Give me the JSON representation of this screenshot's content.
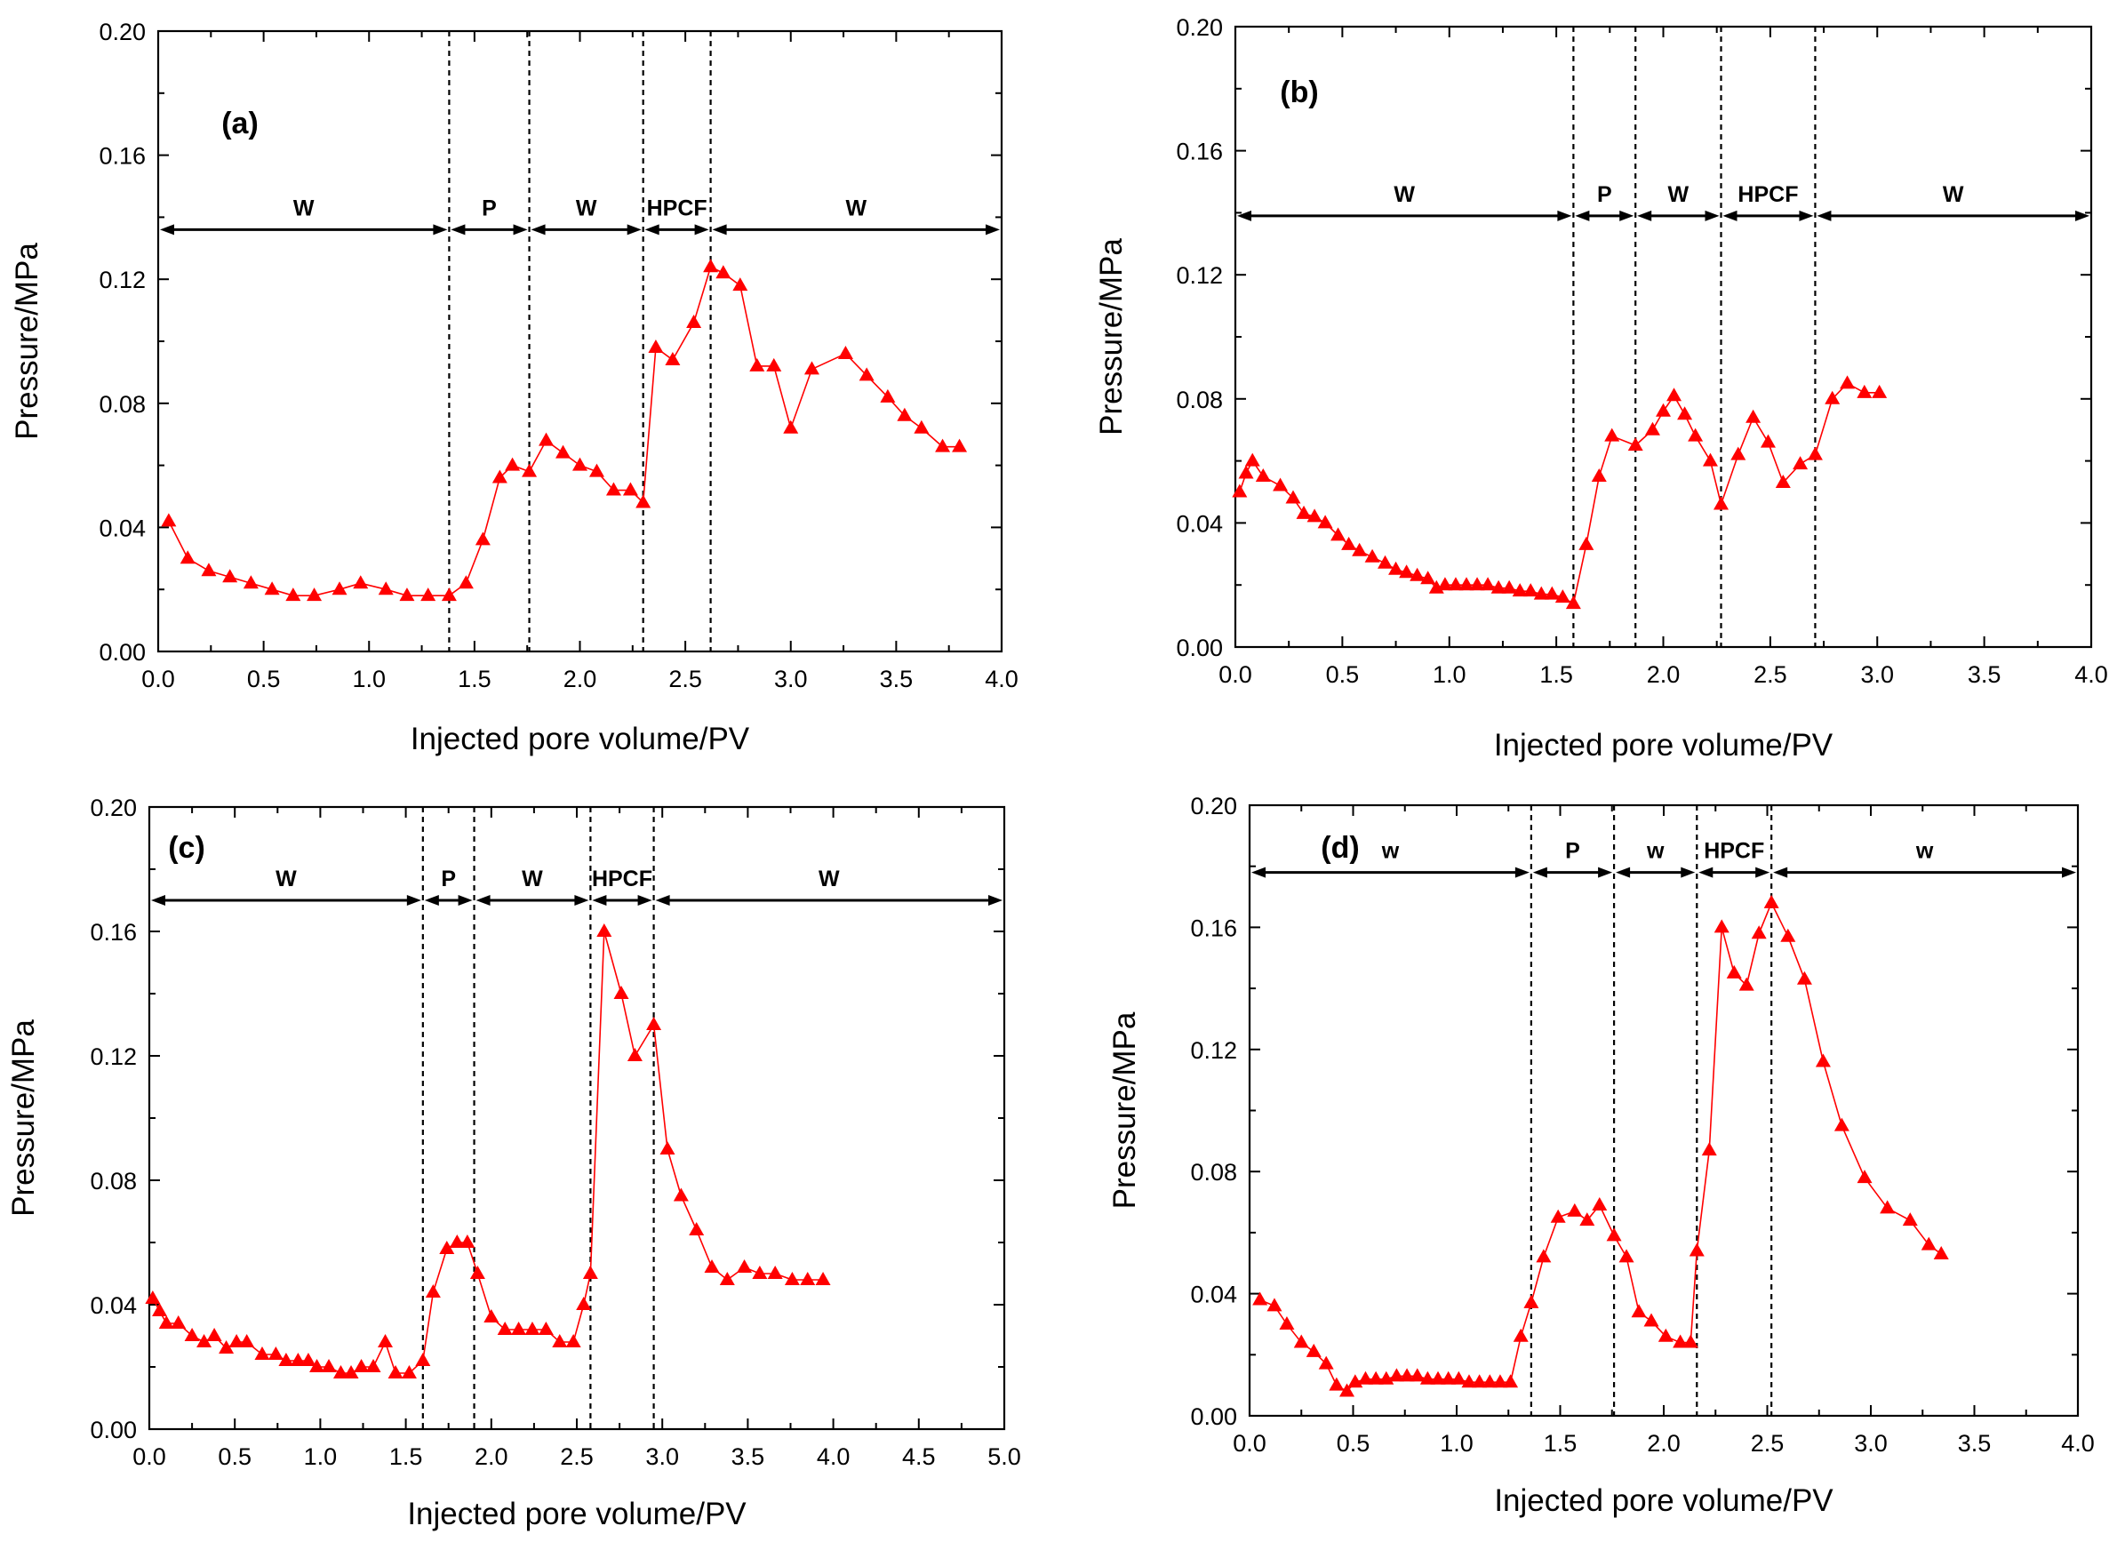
{
  "colors": {
    "series": "#ff0000",
    "axis": "#000000"
  },
  "chart_data": [
    {
      "type": "line",
      "panel": "(a)",
      "xlabel": "Injected pore volume/PV",
      "ylabel": "Pressure/MPa",
      "xlim": [
        0.0,
        4.0
      ],
      "ylim": [
        0.0,
        0.2
      ],
      "xticks": [
        "0.0",
        "0.5",
        "1.0",
        "1.5",
        "2.0",
        "2.5",
        "3.0",
        "3.5",
        "4.0"
      ],
      "yticks": [
        "0.00",
        "0.04",
        "0.08",
        "0.12",
        "0.16",
        "0.20"
      ],
      "dividers": [
        1.38,
        1.76,
        2.3,
        2.62
      ],
      "stages": [
        {
          "label": "W",
          "from": 0.0,
          "to": 1.38,
          "y": 0.136
        },
        {
          "label": "P",
          "from": 1.38,
          "to": 1.76,
          "y": 0.136
        },
        {
          "label": "W",
          "from": 1.76,
          "to": 2.3,
          "y": 0.136
        },
        {
          "label": "HPCF",
          "from": 2.3,
          "to": 2.62,
          "y": 0.136
        },
        {
          "label": "W",
          "from": 2.62,
          "to": 4.0,
          "y": 0.136
        }
      ],
      "series": [
        {
          "name": "Pressure",
          "x": [
            0.05,
            0.14,
            0.24,
            0.34,
            0.44,
            0.54,
            0.64,
            0.74,
            0.86,
            0.96,
            1.08,
            1.18,
            1.28,
            1.38,
            1.46,
            1.54,
            1.62,
            1.68,
            1.76,
            1.84,
            1.92,
            2.0,
            2.08,
            2.16,
            2.24,
            2.3,
            2.36,
            2.44,
            2.54,
            2.62,
            2.68,
            2.76,
            2.84,
            2.92,
            3.0,
            3.1,
            3.26,
            3.36,
            3.46,
            3.54,
            3.62,
            3.72,
            3.8
          ],
          "y": [
            0.042,
            0.03,
            0.026,
            0.024,
            0.022,
            0.02,
            0.018,
            0.018,
            0.02,
            0.022,
            0.02,
            0.018,
            0.018,
            0.018,
            0.022,
            0.036,
            0.056,
            0.06,
            0.058,
            0.068,
            0.064,
            0.06,
            0.058,
            0.052,
            0.052,
            0.048,
            0.098,
            0.094,
            0.106,
            0.124,
            0.122,
            0.118,
            0.092,
            0.092,
            0.072,
            0.091,
            0.096,
            0.089,
            0.082,
            0.076,
            0.072,
            0.066,
            0.066
          ]
        }
      ]
    },
    {
      "type": "line",
      "panel": "(b)",
      "xlabel": "Injected pore volume/PV",
      "ylabel": "Pressure/MPa",
      "xlim": [
        0.0,
        4.0
      ],
      "ylim": [
        0.0,
        0.2
      ],
      "xticks": [
        "0.0",
        "0.5",
        "1.0",
        "1.5",
        "2.0",
        "2.5",
        "3.0",
        "3.5",
        "4.0"
      ],
      "yticks": [
        "0.00",
        "0.04",
        "0.08",
        "0.12",
        "0.16",
        "0.20"
      ],
      "dividers": [
        1.58,
        1.87,
        2.27,
        2.71
      ],
      "stages": [
        {
          "label": "W",
          "from": 0.0,
          "to": 1.58,
          "y": 0.139
        },
        {
          "label": "P",
          "from": 1.58,
          "to": 1.87,
          "y": 0.139
        },
        {
          "label": "W",
          "from": 1.87,
          "to": 2.27,
          "y": 0.139
        },
        {
          "label": "HPCF",
          "from": 2.27,
          "to": 2.71,
          "y": 0.139
        },
        {
          "label": "W",
          "from": 2.71,
          "to": 4.0,
          "y": 0.139
        }
      ],
      "series": [
        {
          "name": "Pressure",
          "x": [
            0.02,
            0.05,
            0.08,
            0.13,
            0.21,
            0.27,
            0.32,
            0.37,
            0.42,
            0.48,
            0.53,
            0.58,
            0.64,
            0.7,
            0.75,
            0.8,
            0.85,
            0.9,
            0.94,
            0.98,
            1.03,
            1.08,
            1.13,
            1.18,
            1.23,
            1.28,
            1.33,
            1.38,
            1.43,
            1.48,
            1.53,
            1.58,
            1.64,
            1.7,
            1.76,
            1.87,
            1.95,
            2.0,
            2.05,
            2.1,
            2.15,
            2.22,
            2.27,
            2.35,
            2.42,
            2.49,
            2.56,
            2.64,
            2.71,
            2.79,
            2.86,
            2.94,
            3.01
          ],
          "y": [
            0.05,
            0.056,
            0.06,
            0.055,
            0.052,
            0.048,
            0.043,
            0.042,
            0.04,
            0.036,
            0.033,
            0.031,
            0.029,
            0.027,
            0.025,
            0.024,
            0.023,
            0.022,
            0.019,
            0.02,
            0.02,
            0.02,
            0.02,
            0.02,
            0.019,
            0.019,
            0.018,
            0.018,
            0.017,
            0.017,
            0.016,
            0.014,
            0.033,
            0.055,
            0.068,
            0.065,
            0.07,
            0.076,
            0.081,
            0.075,
            0.068,
            0.06,
            0.046,
            0.062,
            0.074,
            0.066,
            0.053,
            0.059,
            0.062,
            0.08,
            0.085,
            0.082,
            0.082
          ]
        }
      ]
    },
    {
      "type": "line",
      "panel": "(c)",
      "xlabel": "Injected pore volume/PV",
      "ylabel": "Pressure/MPa",
      "xlim": [
        0.0,
        5.0
      ],
      "ylim": [
        0.0,
        0.2
      ],
      "xticks": [
        "0.0",
        "0.5",
        "1.0",
        "1.5",
        "2.0",
        "2.5",
        "3.0",
        "3.5",
        "4.0",
        "4.5",
        "5.0"
      ],
      "yticks": [
        "0.00",
        "0.04",
        "0.08",
        "0.12",
        "0.16",
        "0.20"
      ],
      "dividers": [
        1.6,
        1.9,
        2.58,
        2.95
      ],
      "stages": [
        {
          "label": "W",
          "from": 0.0,
          "to": 1.6,
          "y": 0.17
        },
        {
          "label": "P",
          "from": 1.6,
          "to": 1.9,
          "y": 0.17
        },
        {
          "label": "W",
          "from": 1.9,
          "to": 2.58,
          "y": 0.17
        },
        {
          "label": "HPCF",
          "from": 2.58,
          "to": 2.95,
          "y": 0.17
        },
        {
          "label": "W",
          "from": 2.95,
          "to": 5.0,
          "y": 0.17
        }
      ],
      "series": [
        {
          "name": "Pressure",
          "x": [
            0.02,
            0.06,
            0.1,
            0.17,
            0.25,
            0.32,
            0.38,
            0.45,
            0.51,
            0.57,
            0.66,
            0.74,
            0.8,
            0.87,
            0.93,
            0.98,
            1.05,
            1.12,
            1.18,
            1.24,
            1.31,
            1.38,
            1.44,
            1.52,
            1.6,
            1.66,
            1.74,
            1.8,
            1.86,
            1.92,
            2.0,
            2.08,
            2.16,
            2.24,
            2.32,
            2.4,
            2.48,
            2.54,
            2.58,
            2.66,
            2.76,
            2.84,
            2.95,
            3.03,
            3.11,
            3.2,
            3.29,
            3.38,
            3.48,
            3.57,
            3.66,
            3.76,
            3.85,
            3.94
          ],
          "y": [
            0.042,
            0.038,
            0.034,
            0.034,
            0.03,
            0.028,
            0.03,
            0.026,
            0.028,
            0.028,
            0.024,
            0.024,
            0.022,
            0.022,
            0.022,
            0.02,
            0.02,
            0.018,
            0.018,
            0.02,
            0.02,
            0.028,
            0.018,
            0.018,
            0.022,
            0.044,
            0.058,
            0.06,
            0.06,
            0.05,
            0.036,
            0.032,
            0.032,
            0.032,
            0.032,
            0.028,
            0.028,
            0.04,
            0.05,
            0.16,
            0.14,
            0.12,
            0.13,
            0.09,
            0.075,
            0.064,
            0.052,
            0.048,
            0.052,
            0.05,
            0.05,
            0.048,
            0.048,
            0.048
          ]
        }
      ]
    },
    {
      "type": "line",
      "panel": "(d)",
      "xlabel": "Injected pore volume/PV",
      "ylabel": "Pressure/MPa",
      "xlim": [
        0.0,
        4.0
      ],
      "ylim": [
        0.0,
        0.2
      ],
      "xticks": [
        "0.0",
        "0.5",
        "1.0",
        "1.5",
        "2.0",
        "2.5",
        "3.0",
        "3.5",
        "4.0"
      ],
      "yticks": [
        "0.00",
        "0.04",
        "0.08",
        "0.12",
        "0.16",
        "0.20"
      ],
      "dividers": [
        1.36,
        1.76,
        2.16,
        2.52
      ],
      "stages": [
        {
          "label": "w",
          "from": 0.0,
          "to": 1.36,
          "y": 0.178
        },
        {
          "label": "P",
          "from": 1.36,
          "to": 1.76,
          "y": 0.178
        },
        {
          "label": "w",
          "from": 1.76,
          "to": 2.16,
          "y": 0.178
        },
        {
          "label": "HPCF",
          "from": 2.16,
          "to": 2.52,
          "y": 0.178
        },
        {
          "label": "w",
          "from": 2.52,
          "to": 4.0,
          "y": 0.178
        }
      ],
      "series": [
        {
          "name": "Pressure",
          "x": [
            0.05,
            0.12,
            0.18,
            0.25,
            0.31,
            0.37,
            0.42,
            0.47,
            0.51,
            0.56,
            0.61,
            0.66,
            0.71,
            0.76,
            0.81,
            0.86,
            0.91,
            0.96,
            1.01,
            1.06,
            1.11,
            1.16,
            1.21,
            1.26,
            1.31,
            1.36,
            1.42,
            1.49,
            1.57,
            1.63,
            1.69,
            1.76,
            1.82,
            1.88,
            1.94,
            2.01,
            2.08,
            2.13,
            2.16,
            2.22,
            2.28,
            2.34,
            2.4,
            2.46,
            2.52,
            2.6,
            2.68,
            2.77,
            2.86,
            2.97,
            3.08,
            3.19,
            3.28,
            3.34
          ],
          "y": [
            0.038,
            0.036,
            0.03,
            0.024,
            0.021,
            0.017,
            0.01,
            0.008,
            0.011,
            0.012,
            0.012,
            0.012,
            0.013,
            0.013,
            0.013,
            0.012,
            0.012,
            0.012,
            0.012,
            0.011,
            0.011,
            0.011,
            0.011,
            0.011,
            0.026,
            0.037,
            0.052,
            0.065,
            0.067,
            0.064,
            0.069,
            0.059,
            0.052,
            0.034,
            0.031,
            0.026,
            0.024,
            0.024,
            0.054,
            0.087,
            0.16,
            0.145,
            0.141,
            0.158,
            0.168,
            0.157,
            0.143,
            0.116,
            0.095,
            0.078,
            0.068,
            0.064,
            0.056,
            0.053
          ]
        }
      ]
    }
  ]
}
